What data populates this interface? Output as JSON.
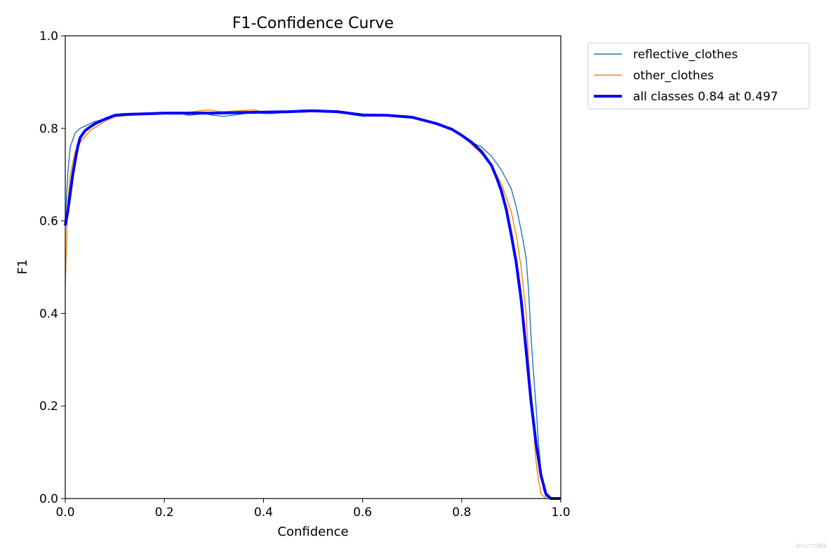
{
  "chart_data": {
    "type": "line",
    "title": "F1-Confidence Curve",
    "xlabel": "Confidence",
    "ylabel": "F1",
    "xlim": [
      0.0,
      1.0
    ],
    "ylim": [
      0.0,
      1.0
    ],
    "xticks": [
      "0.0",
      "0.2",
      "0.4",
      "0.6",
      "0.8",
      "1.0"
    ],
    "yticks": [
      "0.0",
      "0.2",
      "0.4",
      "0.6",
      "0.8",
      "1.0"
    ],
    "grid": false,
    "legend_position": "outside-top-right",
    "series": [
      {
        "name": "reflective_clothes",
        "color": "#1f77b4",
        "x": [
          0.0,
          0.005,
          0.01,
          0.02,
          0.03,
          0.04,
          0.06,
          0.08,
          0.1,
          0.12,
          0.15,
          0.2,
          0.22,
          0.25,
          0.28,
          0.3,
          0.32,
          0.35,
          0.38,
          0.4,
          0.42,
          0.45,
          0.48,
          0.5,
          0.55,
          0.6,
          0.65,
          0.7,
          0.75,
          0.78,
          0.8,
          0.82,
          0.84,
          0.86,
          0.88,
          0.89,
          0.9,
          0.91,
          0.92,
          0.93,
          0.935,
          0.94,
          0.945,
          0.95,
          0.955,
          0.96,
          0.965,
          0.97,
          0.98,
          0.99,
          1.0
        ],
        "y": [
          0.6,
          0.7,
          0.76,
          0.79,
          0.8,
          0.805,
          0.815,
          0.82,
          0.828,
          0.83,
          0.83,
          0.833,
          0.835,
          0.828,
          0.832,
          0.828,
          0.826,
          0.83,
          0.835,
          0.832,
          0.832,
          0.835,
          0.835,
          0.836,
          0.835,
          0.826,
          0.829,
          0.824,
          0.81,
          0.8,
          0.785,
          0.77,
          0.76,
          0.74,
          0.71,
          0.69,
          0.67,
          0.63,
          0.58,
          0.52,
          0.45,
          0.35,
          0.27,
          0.2,
          0.12,
          0.06,
          0.02,
          0.005,
          0.0,
          0.0,
          0.0
        ]
      },
      {
        "name": "other_clothes",
        "color": "#ff7f0e",
        "x": [
          0.0,
          0.005,
          0.01,
          0.02,
          0.03,
          0.05,
          0.08,
          0.1,
          0.15,
          0.2,
          0.25,
          0.29,
          0.3,
          0.32,
          0.35,
          0.38,
          0.4,
          0.42,
          0.45,
          0.48,
          0.5,
          0.55,
          0.6,
          0.65,
          0.7,
          0.75,
          0.78,
          0.8,
          0.82,
          0.84,
          0.86,
          0.88,
          0.9,
          0.91,
          0.92,
          0.93,
          0.935,
          0.94,
          0.945,
          0.95,
          0.955,
          0.96,
          0.97
        ],
        "y": [
          0.46,
          0.64,
          0.7,
          0.75,
          0.77,
          0.795,
          0.815,
          0.825,
          0.83,
          0.833,
          0.835,
          0.84,
          0.838,
          0.836,
          0.838,
          0.84,
          0.835,
          0.833,
          0.835,
          0.84,
          0.838,
          0.836,
          0.829,
          0.828,
          0.825,
          0.81,
          0.8,
          0.785,
          0.765,
          0.745,
          0.72,
          0.68,
          0.62,
          0.57,
          0.5,
          0.4,
          0.3,
          0.22,
          0.15,
          0.08,
          0.04,
          0.01,
          0.0
        ]
      },
      {
        "name": "all classes 0.84 at 0.497",
        "color": "#0000ff",
        "x": [
          0.0,
          0.005,
          0.01,
          0.015,
          0.02,
          0.025,
          0.03,
          0.04,
          0.05,
          0.06,
          0.08,
          0.1,
          0.12,
          0.15,
          0.2,
          0.25,
          0.3,
          0.35,
          0.4,
          0.45,
          0.497,
          0.55,
          0.6,
          0.65,
          0.7,
          0.75,
          0.78,
          0.8,
          0.82,
          0.84,
          0.86,
          0.87,
          0.88,
          0.89,
          0.9,
          0.91,
          0.92,
          0.93,
          0.94,
          0.95,
          0.96,
          0.97,
          0.98,
          0.99,
          1.0
        ],
        "y": [
          0.59,
          0.62,
          0.66,
          0.7,
          0.73,
          0.76,
          0.78,
          0.795,
          0.803,
          0.81,
          0.82,
          0.828,
          0.83,
          0.831,
          0.833,
          0.833,
          0.833,
          0.834,
          0.835,
          0.836,
          0.838,
          0.836,
          0.829,
          0.828,
          0.824,
          0.81,
          0.798,
          0.785,
          0.77,
          0.75,
          0.72,
          0.695,
          0.665,
          0.625,
          0.57,
          0.51,
          0.43,
          0.32,
          0.21,
          0.12,
          0.05,
          0.01,
          0.0,
          0.0,
          0.0
        ]
      }
    ]
  },
  "watermark": "@51CTO博客"
}
